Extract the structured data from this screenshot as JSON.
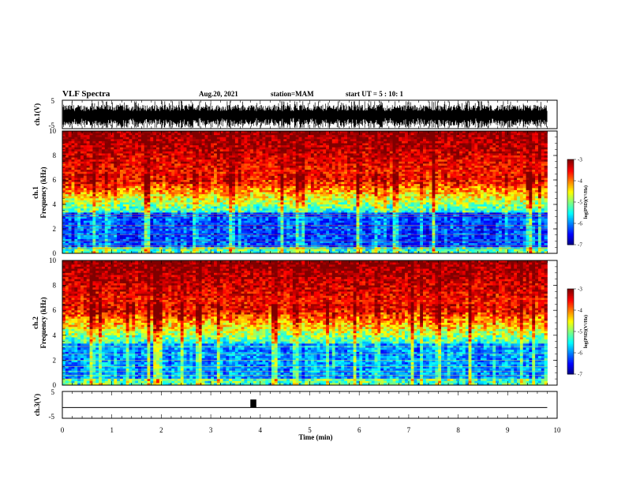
{
  "header": {
    "title": "VLF Spectra",
    "date": "Aug.20, 2021",
    "station": "station=MAM",
    "start": "start UT =  5 : 10: 1"
  },
  "chart_data": [
    {
      "type": "line",
      "panel": "ch1-waveform",
      "ylabel": "ch.1(V)",
      "ylim": [
        -5,
        5
      ],
      "yticks": [
        "5",
        "-5"
      ],
      "xlim": [
        0,
        10
      ],
      "series": [
        {
          "values": []
        }
      ]
    },
    {
      "type": "heatmap",
      "panel": "ch1-spectrogram",
      "ylabel_channel": "ch.1",
      "ylabel": "Frequency (kHz)",
      "yticks": [
        "0",
        "2",
        "4",
        "6",
        "8",
        "10"
      ],
      "ylim": [
        0,
        10
      ],
      "xlim": [
        0,
        9.8
      ],
      "colorbar": {
        "label": "log(PSD)(V²/Hz)",
        "ticks": [
          "-3",
          "-4",
          "-5",
          "-6",
          "-7"
        ],
        "range": [
          -7,
          -3
        ],
        "colormap": "jet"
      }
    },
    {
      "type": "heatmap",
      "panel": "ch2-spectrogram",
      "ylabel_channel": "ch.2",
      "ylabel": "Frequency (kHz)",
      "yticks": [
        "0",
        "2",
        "4",
        "6",
        "8",
        "10"
      ],
      "ylim": [
        0,
        10
      ],
      "xlim": [
        0,
        9.8
      ],
      "colorbar": {
        "label": "log(PSD)(V²/Hz)",
        "ticks": [
          "-3",
          "-4",
          "-5",
          "-6",
          "-7"
        ],
        "range": [
          -7,
          -3
        ],
        "colormap": "jet"
      }
    },
    {
      "type": "line",
      "panel": "ch3-waveform",
      "ylabel": "ch.3(V)",
      "ylim": [
        -5,
        5
      ],
      "yticks": [
        "5",
        "-5"
      ],
      "xlim": [
        0,
        10
      ],
      "baseline": -1,
      "pulse": {
        "x_start": 3.8,
        "x_end": 3.92,
        "y_top": 2,
        "y_bottom": -1
      }
    }
  ],
  "xaxis": {
    "label": "Time (min)",
    "ticks": [
      "0",
      "1",
      "2",
      "3",
      "4",
      "5",
      "6",
      "7",
      "8",
      "9",
      "10"
    ],
    "range": [
      0,
      10
    ]
  },
  "colors": {
    "frame": "#000000",
    "background": "#ffffff"
  }
}
